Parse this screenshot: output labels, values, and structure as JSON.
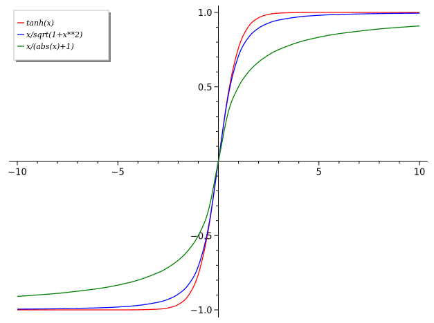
{
  "chart_data": {
    "type": "line",
    "title": "",
    "xlabel": "",
    "ylabel": "",
    "xlim": [
      -10,
      10
    ],
    "ylim": [
      -1,
      1
    ],
    "grid": false,
    "legend_position": "top-left",
    "x_ticks": {
      "values": [
        -10,
        -5,
        5,
        10
      ],
      "labels": [
        "−10",
        "−5",
        "5",
        "10"
      ]
    },
    "y_ticks": {
      "values": [
        1.0,
        0.5,
        -0.5,
        -1.0
      ],
      "labels": [
        "1.0",
        "0.5",
        "−0.5",
        "−1.0"
      ]
    },
    "series": [
      {
        "name": "tanh(x)",
        "color": "#ff0000",
        "x": [
          -10,
          -8,
          -6,
          -5,
          -4,
          -3,
          -2.5,
          -2,
          -1.5,
          -1,
          -0.5,
          0,
          0.5,
          1,
          1.5,
          2,
          2.5,
          3,
          4,
          5,
          6,
          8,
          10
        ],
        "y": [
          -1.0,
          -1.0,
          -1.0,
          -0.9999,
          -0.9993,
          -0.9951,
          -0.9866,
          -0.964,
          -0.9051,
          -0.7616,
          -0.4621,
          0.0,
          0.4621,
          0.7616,
          0.9051,
          0.964,
          0.9866,
          0.9951,
          0.9993,
          0.9999,
          1.0,
          1.0,
          1.0
        ]
      },
      {
        "name": "x/sqrt(1+x**2)",
        "color": "#0000ff",
        "x": [
          -10,
          -8,
          -6,
          -5,
          -4,
          -3,
          -2.5,
          -2,
          -1.5,
          -1,
          -0.5,
          0,
          0.5,
          1,
          1.5,
          2,
          2.5,
          3,
          4,
          5,
          6,
          8,
          10
        ],
        "y": [
          -0.995,
          -0.9923,
          -0.9864,
          -0.9806,
          -0.9701,
          -0.9487,
          -0.9285,
          -0.8944,
          -0.8321,
          -0.7071,
          -0.4472,
          0.0,
          0.4472,
          0.7071,
          0.8321,
          0.8944,
          0.9285,
          0.9487,
          0.9701,
          0.9806,
          0.9864,
          0.9923,
          0.995
        ]
      },
      {
        "name": "x/(abs(x)+1)",
        "color": "#008000",
        "x": [
          -10,
          -8,
          -6,
          -5,
          -4,
          -3,
          -2.5,
          -2,
          -1.5,
          -1,
          -0.5,
          0,
          0.5,
          1,
          1.5,
          2,
          2.5,
          3,
          4,
          5,
          6,
          8,
          10
        ],
        "y": [
          -0.9091,
          -0.8889,
          -0.8571,
          -0.8333,
          -0.8,
          -0.75,
          -0.7143,
          -0.6667,
          -0.6,
          -0.5,
          -0.3333,
          0.0,
          0.3333,
          0.5,
          0.6,
          0.6667,
          0.7143,
          0.75,
          0.8,
          0.8333,
          0.8571,
          0.8889,
          0.9091
        ]
      }
    ]
  }
}
